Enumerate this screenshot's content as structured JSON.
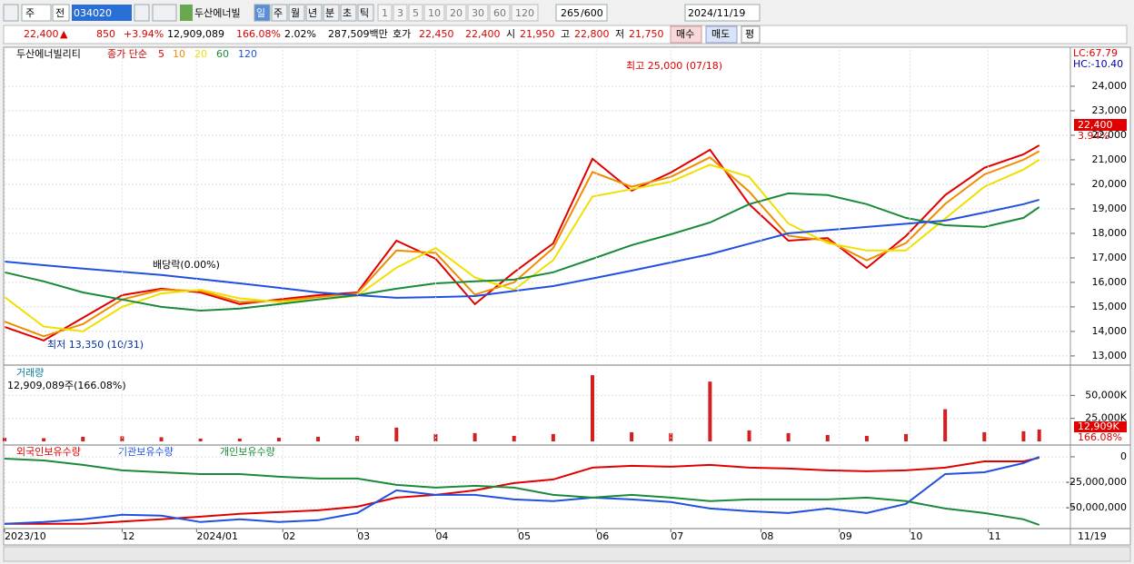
{
  "toolbar": {
    "market": "주",
    "prev": "전",
    "code": "034020",
    "name": "두산에너빌",
    "periods": [
      "일",
      "주",
      "월",
      "년",
      "분",
      "초",
      "틱"
    ],
    "intervals": [
      "1",
      "3",
      "5",
      "10",
      "20",
      "30",
      "60",
      "120"
    ],
    "count": "265",
    "max": "/600",
    "date": "2024/11/19"
  },
  "quote": {
    "price": "22,400",
    "arrow": "▲",
    "change": "850",
    "rate": "+3.94%",
    "volume": "12,909,089",
    "vol_ratio": "166.08%",
    "turnover": "2.02%",
    "amount": "287,509백만",
    "ask_label": "호가",
    "ask": "22,450",
    "bid": "22,400",
    "open_label": "시",
    "open": "21,950",
    "high_label": "고",
    "high": "22,800",
    "low_label": "저",
    "low": "21,750",
    "buy": "매수",
    "sell": "매도",
    "avg": "평"
  },
  "chart_data": [
    {
      "type": "line",
      "title": "두산에너빌리티",
      "subtitle": "종가 단순",
      "xlim": [
        0,
        265
      ],
      "ylim": [
        12700,
        25480
      ],
      "yticks": [
        {
          "value": 13000,
          "label": "13,000"
        },
        {
          "value": 14000,
          "label": "14,000"
        },
        {
          "value": 15000,
          "label": "15,000"
        },
        {
          "value": 16000,
          "label": "16,000"
        },
        {
          "value": 17000,
          "label": "17,000"
        },
        {
          "value": 18000,
          "label": "18,000"
        },
        {
          "value": 19000,
          "label": "19,000"
        },
        {
          "value": 20000,
          "label": "20,000"
        },
        {
          "value": 21000,
          "label": "21,000"
        },
        {
          "value": 22000,
          "label": "22,000"
        },
        {
          "value": 23000,
          "label": "23,000"
        },
        {
          "value": 24000,
          "label": "24,000"
        }
      ],
      "grid": true,
      "x": [
        0,
        10,
        20,
        30,
        40,
        50,
        60,
        70,
        80,
        90,
        100,
        110,
        120,
        130,
        140,
        150,
        160,
        170,
        180,
        190,
        200,
        210,
        220,
        230,
        240,
        250,
        260,
        264
      ],
      "series": [
        {
          "name": "5",
          "color": "#e00000",
          "values": [
            14185,
            13630,
            14555,
            15480,
            15740,
            15590,
            15110,
            15300,
            15480,
            15590,
            17700,
            16960,
            15110,
            16410,
            17590,
            21040,
            19740,
            20480,
            21410,
            19190,
            17700,
            17810,
            16590,
            17890,
            19560,
            20670,
            21220,
            21590
          ]
        },
        {
          "name": "10",
          "color": "#f08c00",
          "values": [
            14400,
            13800,
            14300,
            15300,
            15700,
            15650,
            15200,
            15250,
            15400,
            15550,
            17300,
            17200,
            15500,
            16000,
            17400,
            20500,
            19900,
            20300,
            21100,
            19700,
            17900,
            17700,
            16900,
            17600,
            19200,
            20400,
            21000,
            21350
          ]
        },
        {
          "name": "20",
          "color": "#f0e000",
          "values": [
            15400,
            14200,
            14000,
            15000,
            15550,
            15700,
            15350,
            15200,
            15300,
            15450,
            16600,
            17400,
            16200,
            15700,
            16900,
            19500,
            19800,
            20100,
            20800,
            20300,
            18400,
            17600,
            17300,
            17300,
            18600,
            19900,
            20600,
            21000
          ]
        },
        {
          "name": "60",
          "color": "#1a8a3a",
          "values": [
            16410,
            16040,
            15590,
            15300,
            15000,
            14850,
            14930,
            15110,
            15300,
            15480,
            15740,
            15960,
            16040,
            16110,
            16410,
            16960,
            17520,
            17960,
            18440,
            19190,
            19630,
            19560,
            19190,
            18630,
            18330,
            18260,
            18630,
            19070
          ]
        },
        {
          "name": "120",
          "color": "#2050e0",
          "values": [
            16850,
            16700,
            16560,
            16430,
            16300,
            16130,
            15960,
            15780,
            15590,
            15480,
            15370,
            15400,
            15440,
            15650,
            15850,
            16160,
            16480,
            16810,
            17150,
            17580,
            18000,
            18130,
            18260,
            18390,
            18520,
            18850,
            19190,
            19370
          ]
        }
      ],
      "annotations": [
        "최고 25,000 (07/18)",
        "최저 13,350 (10/31)",
        "배당락(0.00%)"
      ],
      "side_labels": [
        "LC:67.79",
        "HC:-10.40",
        "22,400",
        "3.94%"
      ]
    },
    {
      "type": "bar",
      "title": "거래량",
      "subtitle": "12,909,089주(166.08%)",
      "xlim": [
        0,
        265
      ],
      "ylim": [
        0,
        80000
      ],
      "color": "#d02020",
      "yticks": [
        {
          "value": 25000,
          "label": "25,000K"
        },
        {
          "value": 50000,
          "label": "50,000K"
        }
      ],
      "x": [
        0,
        10,
        20,
        30,
        40,
        50,
        60,
        70,
        80,
        90,
        100,
        110,
        120,
        130,
        140,
        150,
        160,
        170,
        180,
        190,
        200,
        210,
        220,
        230,
        240,
        250,
        260,
        264
      ],
      "values": [
        4000,
        3500,
        5000,
        5500,
        4500,
        3000,
        3000,
        4000,
        5000,
        6000,
        15000,
        8000,
        9000,
        6000,
        8000,
        72000,
        10000,
        9000,
        65000,
        12000,
        9000,
        7000,
        6000,
        8000,
        35000,
        10000,
        11000,
        12909
      ],
      "side_labels": [
        "12,909K",
        "166.08%"
      ]
    },
    {
      "type": "line",
      "xlim": [
        0,
        265
      ],
      "ylim": [
        -70700000,
        9800000
      ],
      "yticks": [
        0,
        {
          "value": -25000000,
          "label": "-25,000,000"
        },
        {
          "value": -50000000,
          "label": "-50,000,000"
        }
      ],
      "xticks": [
        {
          "value": 0,
          "label": "2023/10"
        },
        {
          "value": 30,
          "label": "12"
        },
        {
          "value": 49,
          "label": "2024/01"
        },
        {
          "value": 71,
          "label": "02"
        },
        {
          "value": 90,
          "label": "03"
        },
        {
          "value": 110,
          "label": "04"
        },
        {
          "value": 131,
          "label": "05"
        },
        {
          "value": 151,
          "label": "06"
        },
        {
          "value": 170,
          "label": "07"
        },
        {
          "value": 193,
          "label": "08"
        },
        {
          "value": 213,
          "label": "09"
        },
        {
          "value": 231,
          "label": "10"
        },
        {
          "value": 251,
          "label": "11"
        }
      ],
      "end_label": "11/19",
      "x": [
        0,
        10,
        20,
        30,
        40,
        50,
        60,
        70,
        80,
        90,
        100,
        110,
        120,
        130,
        140,
        150,
        160,
        170,
        180,
        190,
        200,
        210,
        220,
        230,
        240,
        250,
        260,
        264
      ],
      "series": [
        {
          "name": "외국인보유수량",
          "color": "#e00000",
          "values": [
            -66000000,
            -66000000,
            -66000000,
            -63800000,
            -61600000,
            -59000000,
            -56250000,
            -54500000,
            -52700000,
            -49100000,
            -40200000,
            -37500000,
            -33000000,
            -25900000,
            -22300000,
            -10700000,
            -8900000,
            -9800000,
            -8000000,
            -10700000,
            -11600000,
            -13400000,
            -14300000,
            -13400000,
            -10700000,
            -4500000,
            -4500000,
            -900000
          ]
        },
        {
          "name": "기관보유수량",
          "color": "#2050e0",
          "values": [
            -66000000,
            -64300000,
            -61600000,
            -57100000,
            -58000000,
            -64300000,
            -61600000,
            -64300000,
            -62500000,
            -55400000,
            -33000000,
            -37500000,
            -37500000,
            -42000000,
            -43700000,
            -40200000,
            -42000000,
            -44600000,
            -50900000,
            -53600000,
            -55400000,
            -50900000,
            -55400000,
            -46400000,
            -17000000,
            -15200000,
            -6200000,
            0
          ]
        },
        {
          "name": "개인보유수량",
          "color": "#1a8a3a",
          "values": [
            -1800000,
            -3600000,
            -8000000,
            -13400000,
            -15200000,
            -17000000,
            -17000000,
            -19600000,
            -21400000,
            -21400000,
            -27700000,
            -30400000,
            -28600000,
            -30400000,
            -37500000,
            -40200000,
            -37500000,
            -40200000,
            -43700000,
            -42000000,
            -42000000,
            -42000000,
            -40200000,
            -43700000,
            -50900000,
            -55400000,
            -61600000,
            -67000000
          ]
        }
      ]
    }
  ]
}
